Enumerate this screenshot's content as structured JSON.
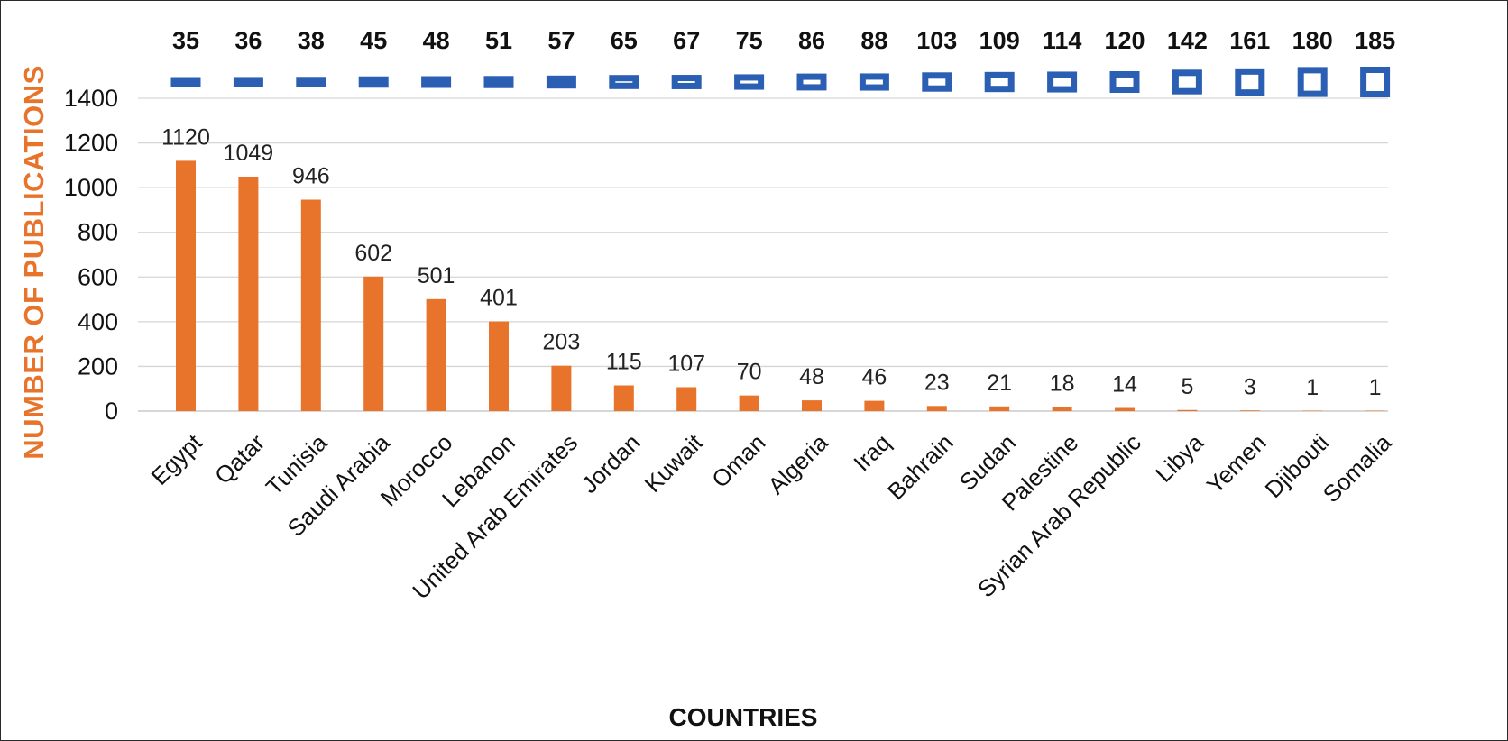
{
  "chart_data": {
    "type": "bar",
    "title": "",
    "xlabel": "COUNTRIES",
    "ylabel": "NUMBER OF PUBLICATIONS",
    "categories": [
      "Egypt",
      "Qatar",
      "Tunisia",
      "Saudi Arabia",
      "Morocco",
      "Lebanon",
      "United Arab Emirates",
      "Jordan",
      "Kuwait",
      "Oman",
      "Algeria",
      "Iraq",
      "Bahrain",
      "Sudan",
      "Palestine",
      "Syrian Arab Republic",
      "Libya",
      "Yemen",
      "Djibouti",
      "Somalia"
    ],
    "series": [
      {
        "values": [
          1120,
          1049,
          946,
          602,
          501,
          401,
          203,
          115,
          107,
          70,
          48,
          46,
          23,
          21,
          18,
          14,
          5,
          3,
          1,
          1
        ],
        "color": "#e8732a"
      },
      {
        "values": [
          35,
          36,
          38,
          45,
          48,
          51,
          57,
          65,
          67,
          75,
          86,
          88,
          103,
          109,
          114,
          120,
          142,
          161,
          180,
          185
        ],
        "color": "#2b5fb4"
      }
    ],
    "ylim": [
      0,
      1400
    ],
    "yticks": [
      0,
      200,
      400,
      600,
      800,
      1000,
      1200,
      1400
    ],
    "grid": true,
    "legend": "none"
  }
}
